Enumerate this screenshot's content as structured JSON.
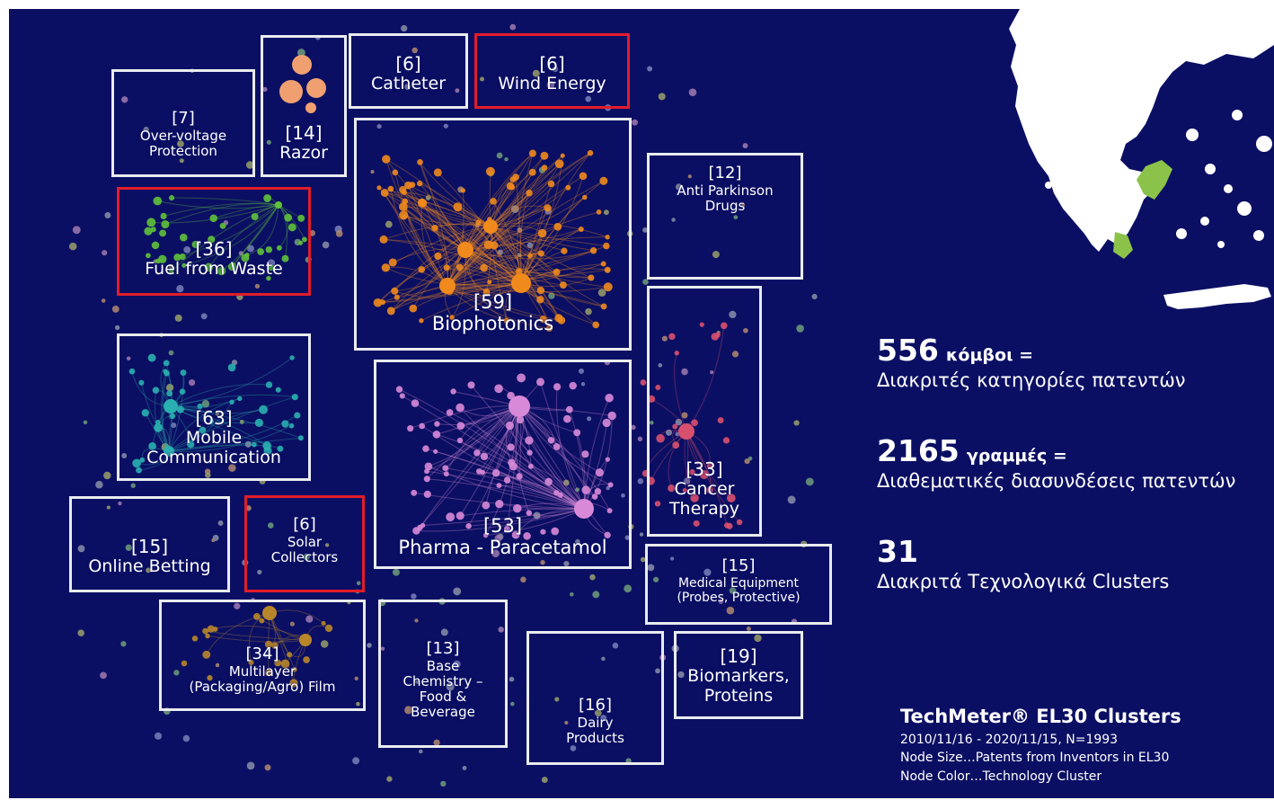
{
  "clusters": [
    {
      "count": "[7]",
      "label": [
        "Over-voltage",
        "Protection"
      ],
      "highlight": false
    },
    {
      "count": "[14]",
      "label": [
        "Razor"
      ],
      "highlight": false
    },
    {
      "count": "[6]",
      "label": [
        "Catheter"
      ],
      "highlight": false
    },
    {
      "count": "[6]",
      "label": [
        "Wind Energy"
      ],
      "highlight": true
    },
    {
      "count": "[36]",
      "label": [
        "Fuel from Waste"
      ],
      "highlight": true
    },
    {
      "count": "[59]",
      "label": [
        "Biophotonics"
      ],
      "highlight": false
    },
    {
      "count": "[12]",
      "label": [
        "Anti Parkinson",
        "Drugs"
      ],
      "highlight": false
    },
    {
      "count": "[63]",
      "label": [
        "Mobile",
        "Communication"
      ],
      "highlight": false
    },
    {
      "count": "[53]",
      "label": [
        "Pharma - Paracetamol"
      ],
      "highlight": false
    },
    {
      "count": "[33]",
      "label": [
        "Cancer",
        "Therapy"
      ],
      "highlight": false
    },
    {
      "count": "[15]",
      "label": [
        "Online Betting"
      ],
      "highlight": false
    },
    {
      "count": "[6]",
      "label": [
        "Solar",
        "Collectors"
      ],
      "highlight": true
    },
    {
      "count": "[15]",
      "label": [
        "Medical Equipment",
        "(Probes, Protective)"
      ],
      "highlight": false
    },
    {
      "count": "[34]",
      "label": [
        "Multilayer",
        "(Packaging/Agro) Film"
      ],
      "highlight": false
    },
    {
      "count": "[13]",
      "label": [
        "Base",
        "Chemistry –",
        "Food &",
        "Beverage"
      ],
      "highlight": false
    },
    {
      "count": "[16]",
      "label": [
        "Dairy",
        "Products"
      ],
      "highlight": false
    },
    {
      "count": "[19]",
      "label": [
        "Biomarkers,",
        "Proteins"
      ],
      "highlight": false
    }
  ],
  "stats": {
    "nodes": {
      "value": "556",
      "unit": "κόμβοι =",
      "desc": "Διακριτές κατηγορίες πατεντών"
    },
    "edges": {
      "value": "2165",
      "unit": "γραμμές =",
      "desc": "Διαθεματικές  διασυνδέσεις πατεντών"
    },
    "clusters": {
      "value": "31",
      "desc": "Διακριτά  Τεχνολογικά Clusters"
    }
  },
  "legend": {
    "title": "TechMeter® EL30 Clusters",
    "lines": [
      "2010/11/16 - 2020/11/15, N=1993",
      "Node Size…Patents from Inventors in EL30",
      "Node Color…Technology Cluster"
    ]
  },
  "colors": {
    "background": "#0b0f63",
    "box_border": "#e9ecef",
    "highlight_border": "#e11d2a",
    "biophotonics": "#f08a1c",
    "pharma": "#d88ad8",
    "cancer": "#d9506e",
    "mobile": "#2ab0b0",
    "fuel": "#5fc23a",
    "razor": "#f0a070",
    "multilayer": "#b8862a",
    "map_land": "#ffffff",
    "map_region": "#8bc34a"
  }
}
